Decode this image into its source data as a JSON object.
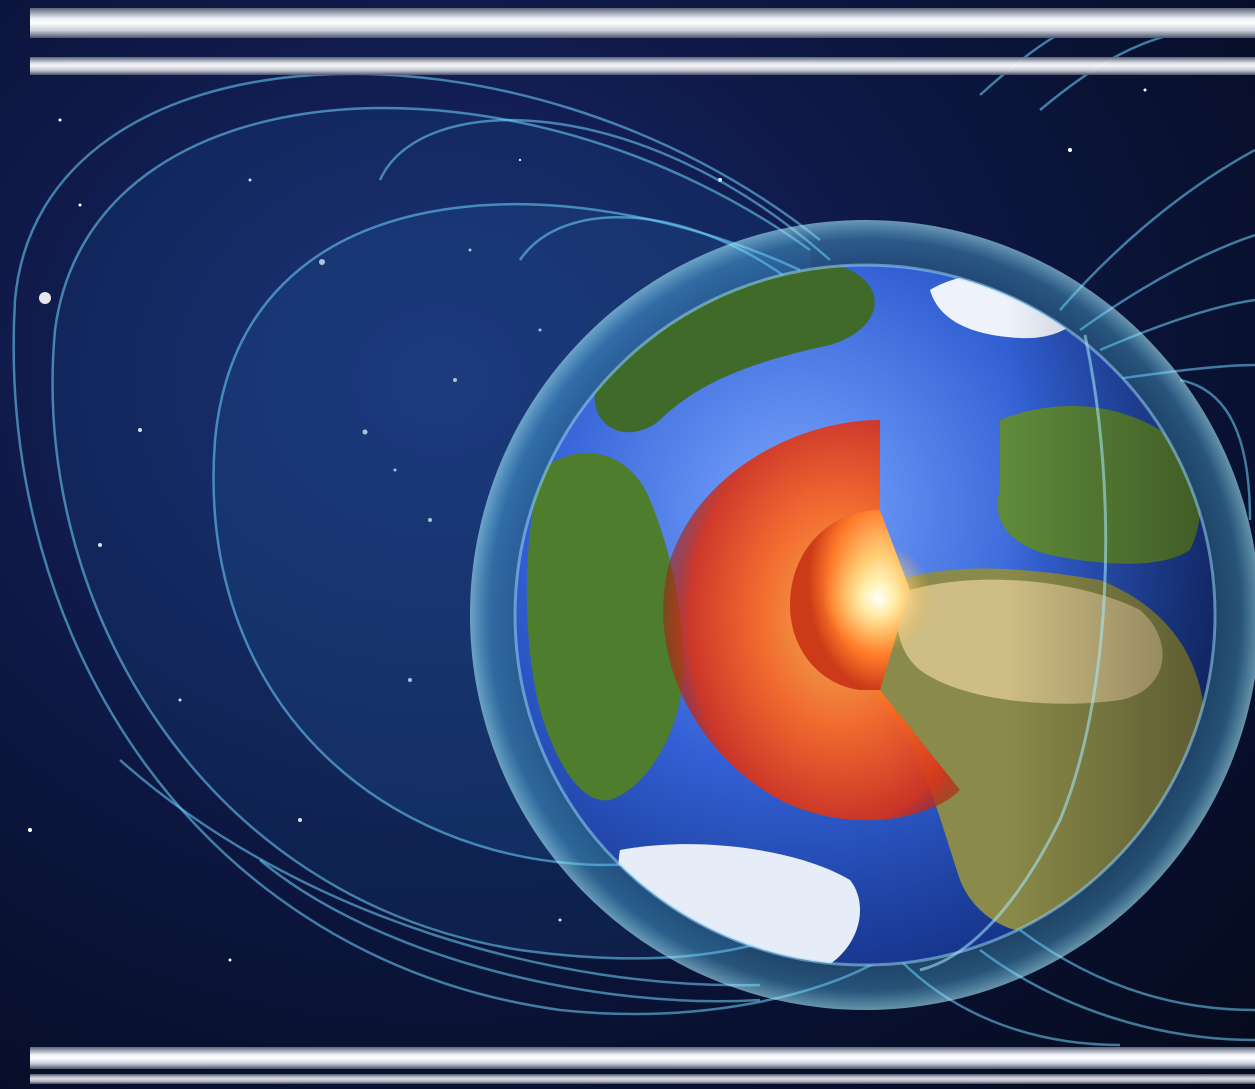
{
  "image": {
    "subject": "earth-magnetic-field-illustration",
    "colors": {
      "space": "#070d22",
      "field_lines": "#6fd6ff",
      "ocean": "#2f5fd0",
      "core_outer": "#e0481c",
      "core_inner": "#ffd27a",
      "land": "#4f7d2e",
      "ice": "#eef3fb",
      "band": "#e9ecf3"
    }
  }
}
